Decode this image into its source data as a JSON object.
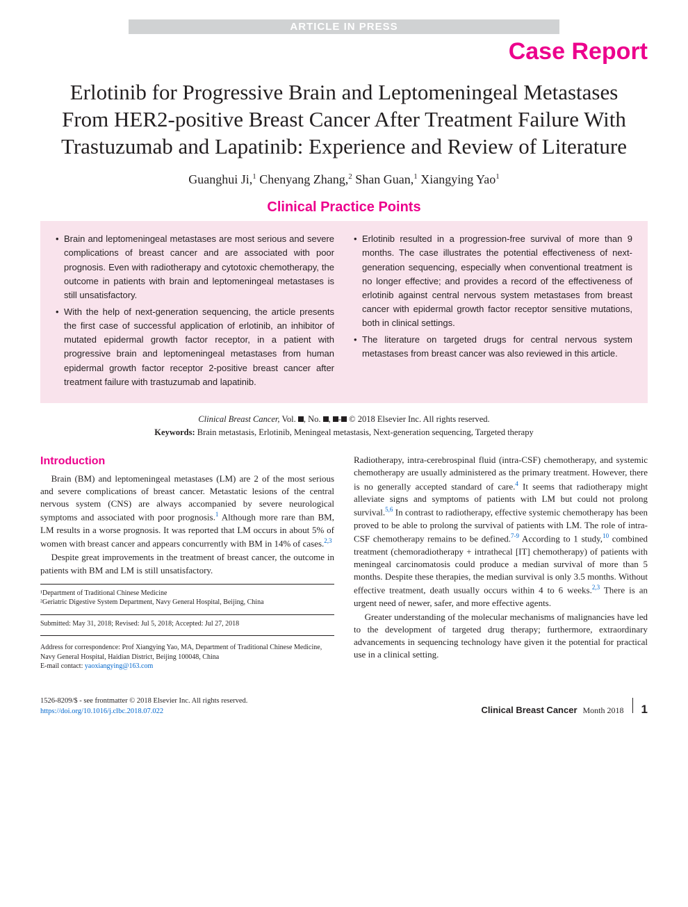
{
  "banner": {
    "text": "ARTICLE IN PRESS",
    "bg": "#d0d2d3",
    "fg": "#ffffff"
  },
  "caseReport": {
    "text": "Case Report",
    "color": "#ec008c",
    "fontsize": 34
  },
  "title": "Erlotinib for Progressive Brain and Leptomeningeal Metastases From HER2-positive Breast Cancer After Treatment Failure With Trastuzumab and Lapatinib: Experience and Review of Literature",
  "authors": [
    {
      "name": "Guanghui Ji",
      "aff": "1"
    },
    {
      "name": "Chenyang Zhang",
      "aff": "2"
    },
    {
      "name": "Shan Guan",
      "aff": "1"
    },
    {
      "name": "Xiangying Yao",
      "aff": "1"
    }
  ],
  "authorsLine": "Guanghui Ji,¹ Chenyang Zhang,² Shan Guan,¹ Xiangying Yao¹",
  "cpp": {
    "heading": "Clinical Practice Points",
    "bg": "#f9e3ec",
    "fontsize": 13,
    "left": [
      "Brain and leptomeningeal metastases are most serious and severe complications of breast cancer and are associated with poor prognosis. Even with radiotherapy and cytotoxic chemotherapy, the outcome in patients with brain and leptomeningeal metastases is still unsatisfactory.",
      "With the help of next-generation sequencing, the article presents the first case of successful application of erlotinib, an inhibitor of mutated epidermal growth factor receptor, in a patient with progressive brain and leptomeningeal metastases from human epidermal growth factor receptor 2-positive breast cancer after treatment failure with trastuzumab and lapatinib."
    ],
    "right": [
      "Erlotinib resulted in a progression-free survival of more than 9 months. The case illustrates the potential effectiveness of next-generation sequencing, especially when conventional treatment is no longer effective; and provides a record of the effectiveness of erlotinib against central nervous system metastases from breast cancer with epidermal growth factor receptor sensitive mutations, both in clinical settings.",
      "The literature on targeted drugs for central nervous system metastases from breast cancer was also reviewed in this article."
    ]
  },
  "journal": {
    "line1_pre": "Clinical Breast Cancer,",
    "line1_mid": " Vol. ■, No. ■, ■-■ ",
    "line1_post": "© 2018 Elsevier Inc. All rights reserved.",
    "keywordsLabel": "Keywords:",
    "keywords": "Brain metastasis, Erlotinib, Meningeal metastasis, Next-generation sequencing, Targeted therapy"
  },
  "intro": {
    "heading": "Introduction",
    "paras_left": [
      "Brain (BM) and leptomeningeal metastases (LM) are 2 of the most serious and severe complications of breast cancer. Metastatic lesions of the central nervous system (CNS) are always accompanied by severe neurological symptoms and associated with poor prognosis.¹ Although more rare than BM, LM results in a worse prognosis. It was reported that LM occurs in about 5% of women with breast cancer and appears concurrently with BM in 14% of cases.²,³",
      "Despite great improvements in the treatment of breast cancer, the outcome in patients with BM and LM is still unsatisfactory."
    ],
    "paras_right": [
      "Radiotherapy, intra-cerebrospinal fluid (intra-CSF) chemotherapy, and systemic chemotherapy are usually administered as the primary treatment. However, there is no generally accepted standard of care.⁴ It seems that radiotherapy might alleviate signs and symptoms of patients with LM but could not prolong survival.⁵,⁶ In contrast to radiotherapy, effective systemic chemotherapy has been proved to be able to prolong the survival of patients with LM. The role of intra-CSF chemotherapy remains to be defined.⁷⁻⁹ According to 1 study,¹⁰ combined treatment (chemoradiotherapy + intrathecal [IT] chemotherapy) of patients with meningeal carcinomatosis could produce a median survival of more than 5 months. Despite these therapies, the median survival is only 3.5 months. Without effective treatment, death usually occurs within 4 to 6 weeks.²,³ There is an urgent need of newer, safer, and more effective agents.",
      "Greater understanding of the molecular mechanisms of malignancies have led to the development of targeted drug therapy; furthermore, extraordinary advancements in sequencing technology have given it the potential for practical use in a clinical setting."
    ]
  },
  "affiliations": {
    "a1": "¹Department of Traditional Chinese Medicine",
    "a2": "²Geriatric Digestive System Department, Navy General Hospital, Beijing, China",
    "submitted": "Submitted: May 31, 2018; Revised: Jul 5, 2018; Accepted: Jul 27, 2018",
    "corr1": "Address for correspondence: Prof Xiangying Yao, MA, Department of Traditional Chinese Medicine, Navy General Hospital, Haidian District, Beijing 100048, China",
    "corr2_label": "E-mail contact: ",
    "corr2_email": "yaoxiangying@163.com"
  },
  "footer": {
    "issn": "1526-8209/$ - see frontmatter © 2018 Elsevier Inc. All rights reserved.",
    "doi": "https://doi.org/10.1016/j.clbc.2018.07.022",
    "journalName": "Clinical Breast Cancer",
    "date": "Month 2018",
    "page": "1"
  },
  "colors": {
    "accent": "#ec008c",
    "boxBg": "#f9e3ec",
    "link": "#0066cc",
    "text": "#231f20",
    "bannerBg": "#d0d2d3"
  },
  "typography": {
    "titleFont": "Georgia, serif",
    "titleSize": 31,
    "bodySize": 13,
    "headingFont": "Arial, sans-serif"
  }
}
